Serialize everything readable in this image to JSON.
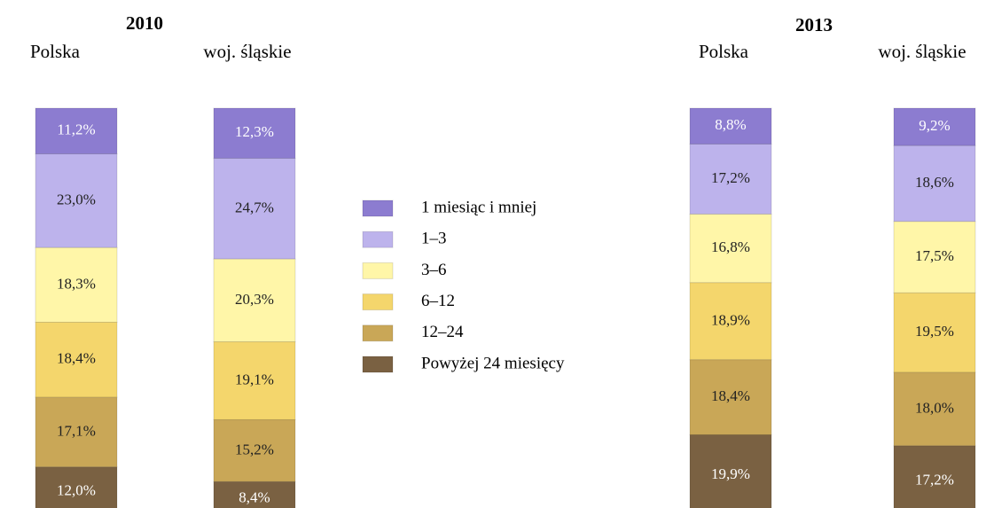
{
  "chart_data": [
    {
      "type": "stacked_bar",
      "title": "2010",
      "categories": [
        "Polska",
        "woj. śląskie"
      ],
      "series": [
        {
          "name": "1 miesiąc i mniej",
          "color": "#8c7cd0",
          "values": [
            11.2,
            12.3
          ],
          "value_labels": [
            "11,2%",
            "12,3%"
          ]
        },
        {
          "name": "1–3",
          "color": "#bdb3ec",
          "values": [
            23.0,
            24.7
          ],
          "value_labels": [
            "23,0%",
            "24,7%"
          ]
        },
        {
          "name": "3–6",
          "color": "#fff6a8",
          "values": [
            18.3,
            20.3
          ],
          "value_labels": [
            "18,3%",
            "20,3%"
          ]
        },
        {
          "name": "6–12",
          "color": "#f4d66c",
          "values": [
            18.4,
            19.1
          ],
          "value_labels": [
            "18,4%",
            "19,1%"
          ]
        },
        {
          "name": "12–24",
          "color": "#c9a757",
          "values": [
            17.1,
            15.2
          ],
          "value_labels": [
            "17,1%",
            "15,2%"
          ]
        },
        {
          "name": "Powyżej 24 miesięcy",
          "color": "#7a6142",
          "values": [
            12.0,
            8.4
          ],
          "value_labels": [
            "12,0%",
            "8,4%"
          ]
        }
      ]
    },
    {
      "type": "stacked_bar",
      "title": "2013",
      "categories": [
        "Polska",
        "woj. śląskie"
      ],
      "series": [
        {
          "name": "1 miesiąc i mniej",
          "color": "#8c7cd0",
          "values": [
            8.8,
            9.2
          ],
          "value_labels": [
            "8,8%",
            "9,2%"
          ]
        },
        {
          "name": "1–3",
          "color": "#bdb3ec",
          "values": [
            17.2,
            18.6
          ],
          "value_labels": [
            "17,2%",
            "18,6%"
          ]
        },
        {
          "name": "3–6",
          "color": "#fff6a8",
          "values": [
            16.8,
            17.5
          ],
          "value_labels": [
            "16,8%",
            "17,5%"
          ]
        },
        {
          "name": "6–12",
          "color": "#f4d66c",
          "values": [
            18.9,
            19.5
          ],
          "value_labels": [
            "18,9%",
            "19,5%"
          ]
        },
        {
          "name": "12–24",
          "color": "#c9a757",
          "values": [
            18.4,
            18.0
          ],
          "value_labels": [
            "18,4%",
            "18,0%"
          ]
        },
        {
          "name": "Powyżej 24 miesięcy",
          "color": "#7a6142",
          "values": [
            19.9,
            17.2
          ],
          "value_labels": [
            "19,9%",
            "17,2%"
          ]
        }
      ]
    }
  ]
}
